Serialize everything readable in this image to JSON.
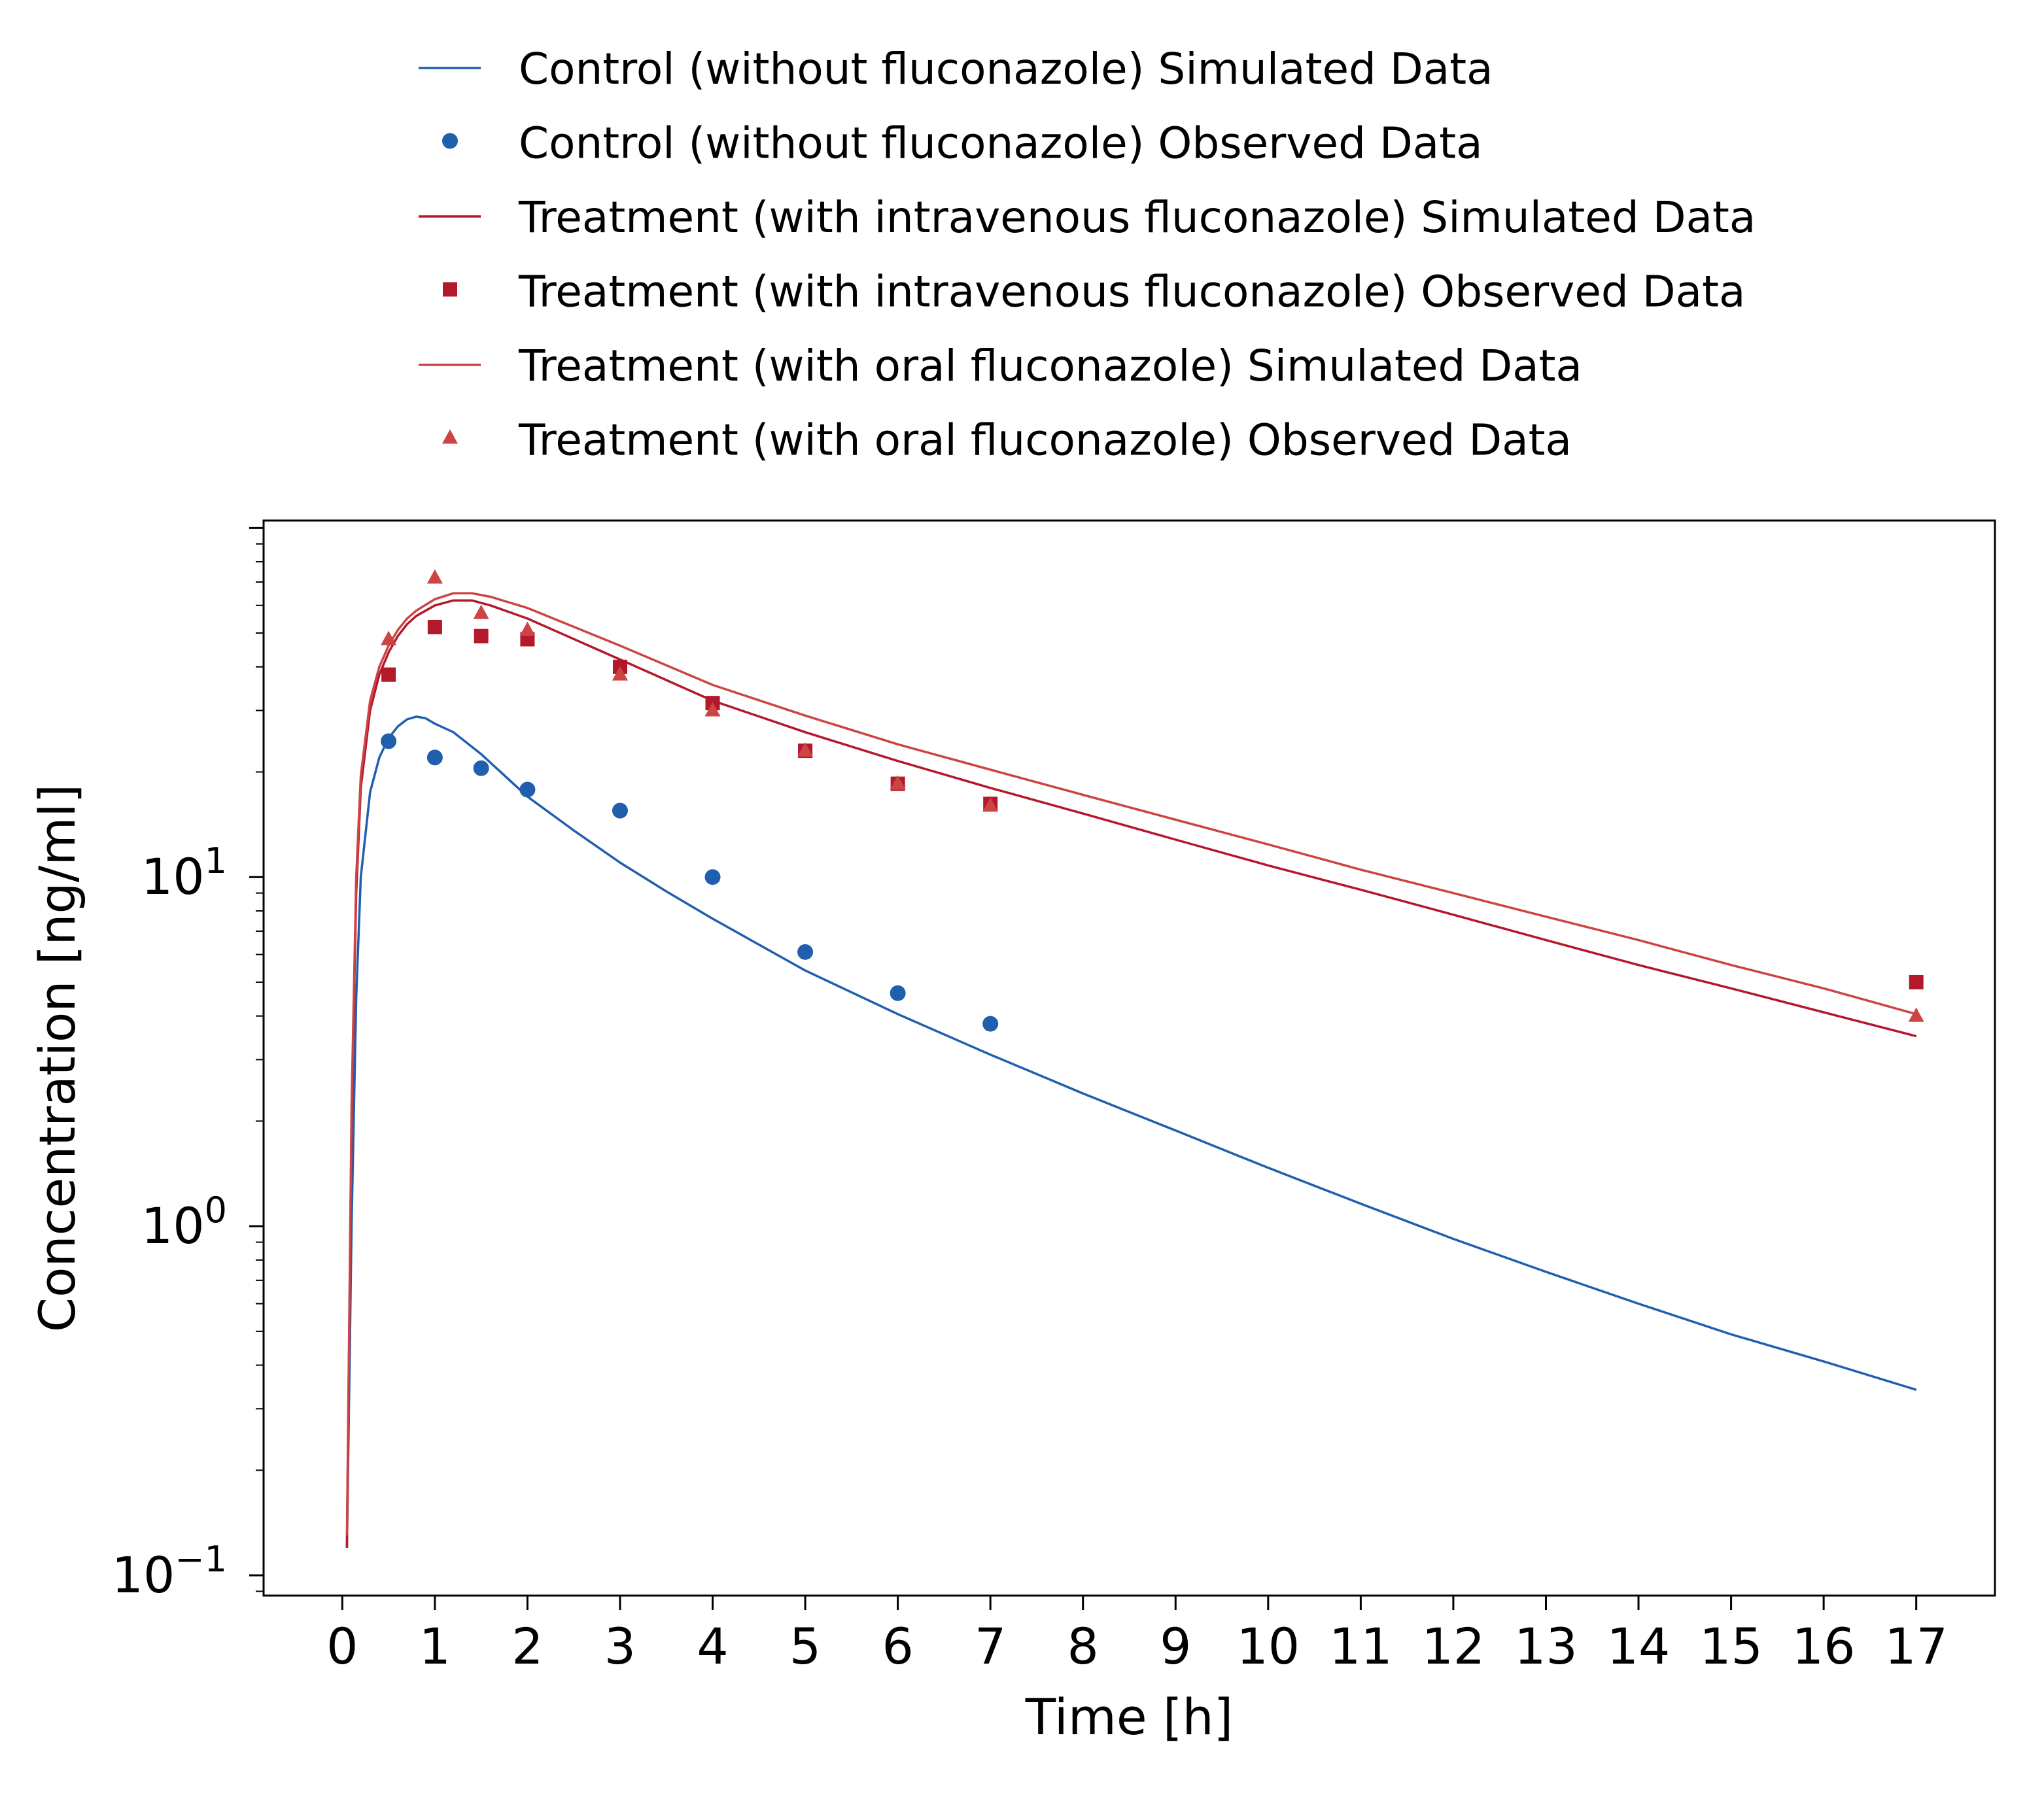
{
  "chart_data": {
    "type": "line",
    "xlabel": "Time [h]",
    "ylabel": "Concentration [ng/ml]",
    "yscale": "log",
    "xlim": [
      -0.85,
      17.85
    ],
    "ylim": [
      0.0875,
      105
    ],
    "grid": false,
    "legend_position": "top-above-plot",
    "x_ticks": [
      0,
      1,
      2,
      3,
      4,
      5,
      6,
      7,
      8,
      9,
      10,
      11,
      12,
      13,
      14,
      15,
      16,
      17
    ],
    "x_tick_labels": [
      "0",
      "1",
      "2",
      "3",
      "4",
      "5",
      "6",
      "7",
      "8",
      "9",
      "10",
      "11",
      "12",
      "13",
      "14",
      "15",
      "16",
      "17"
    ],
    "y_ticks": [
      0.1,
      1,
      10
    ],
    "y_tick_labels": [
      {
        "base": "10",
        "exp": "−1"
      },
      {
        "base": "10",
        "exp": "0"
      },
      {
        "base": "10",
        "exp": "1"
      }
    ],
    "series": [
      {
        "name": "Control (without fluconazole) Simulated Data",
        "kind": "line",
        "color": "#1f5fae",
        "x": [
          0.05,
          0.1,
          0.15,
          0.2,
          0.3,
          0.4,
          0.5,
          0.6,
          0.7,
          0.8,
          0.9,
          1.0,
          1.2,
          1.5,
          2,
          2.5,
          3,
          3.5,
          4,
          5,
          6,
          7,
          8,
          9,
          10,
          11,
          12,
          13,
          14,
          15,
          16,
          17
        ],
        "y": [
          0.12,
          1.0,
          4.5,
          10.0,
          17.5,
          22.0,
          25.0,
          27.0,
          28.3,
          28.8,
          28.5,
          27.5,
          26.0,
          22.5,
          17.0,
          13.6,
          11.0,
          9.1,
          7.6,
          5.4,
          4.05,
          3.1,
          2.4,
          1.88,
          1.47,
          1.16,
          0.92,
          0.74,
          0.6,
          0.49,
          0.41,
          0.34
        ]
      },
      {
        "name": "Control (without fluconazole) Observed Data",
        "kind": "circle",
        "color": "#1f5fae",
        "x": [
          0.5,
          1,
          1.5,
          2,
          3,
          4,
          5,
          6,
          7
        ],
        "y": [
          24.5,
          22.0,
          20.5,
          17.8,
          15.5,
          10.0,
          6.1,
          4.65,
          3.8
        ]
      },
      {
        "name": "Treatment (with intravenous fluconazole) Simulated Data",
        "kind": "line",
        "color": "#b3182b",
        "x": [
          0.05,
          0.1,
          0.15,
          0.2,
          0.3,
          0.4,
          0.5,
          0.6,
          0.7,
          0.8,
          1.0,
          1.2,
          1.4,
          1.6,
          2,
          3,
          4,
          5,
          6,
          7,
          8,
          9,
          10,
          11,
          12,
          13,
          14,
          15,
          16,
          17
        ],
        "y": [
          0.12,
          2.0,
          9.0,
          18.0,
          30.0,
          38.0,
          44.0,
          49.0,
          53.0,
          56.0,
          60.0,
          62.0,
          62.0,
          60.0,
          55.0,
          42.0,
          32.0,
          26.0,
          21.5,
          18.0,
          15.2,
          12.8,
          10.8,
          9.2,
          7.8,
          6.6,
          5.6,
          4.8,
          4.1,
          3.5
        ]
      },
      {
        "name": "Treatment (with intravenous fluconazole) Observed Data",
        "kind": "square",
        "color": "#b3182b",
        "x": [
          0.5,
          1,
          1.5,
          2,
          3,
          4,
          5,
          6,
          7,
          17
        ],
        "y": [
          38.0,
          52.0,
          49.0,
          48.0,
          40.0,
          31.5,
          23.0,
          18.5,
          16.2,
          5.0
        ]
      },
      {
        "name": "Treatment (with oral fluconazole) Simulated Data",
        "kind": "line",
        "color": "#cc4444",
        "x": [
          0.05,
          0.1,
          0.15,
          0.2,
          0.3,
          0.4,
          0.5,
          0.6,
          0.7,
          0.8,
          1.0,
          1.2,
          1.4,
          1.6,
          2,
          3,
          4,
          5,
          6,
          7,
          8,
          9,
          10,
          11,
          12,
          13,
          14,
          15,
          16,
          17
        ],
        "y": [
          0.13,
          2.2,
          10.0,
          19.5,
          32.0,
          40.0,
          46.0,
          51.0,
          55.0,
          58.0,
          62.5,
          65.0,
          65.0,
          63.5,
          59.0,
          46.0,
          35.5,
          29.0,
          24.0,
          20.3,
          17.2,
          14.6,
          12.4,
          10.5,
          9.0,
          7.7,
          6.6,
          5.6,
          4.8,
          4.05
        ]
      },
      {
        "name": "Treatment (with oral fluconazole) Observed Data",
        "kind": "triangle",
        "color": "#cc4444",
        "x": [
          0.5,
          1,
          1.5,
          2,
          3,
          4,
          5,
          6,
          7,
          17
        ],
        "y": [
          48.0,
          72.0,
          57.0,
          51.0,
          38.0,
          30.0,
          23.0,
          18.5,
          16.0,
          4.0
        ]
      }
    ]
  }
}
